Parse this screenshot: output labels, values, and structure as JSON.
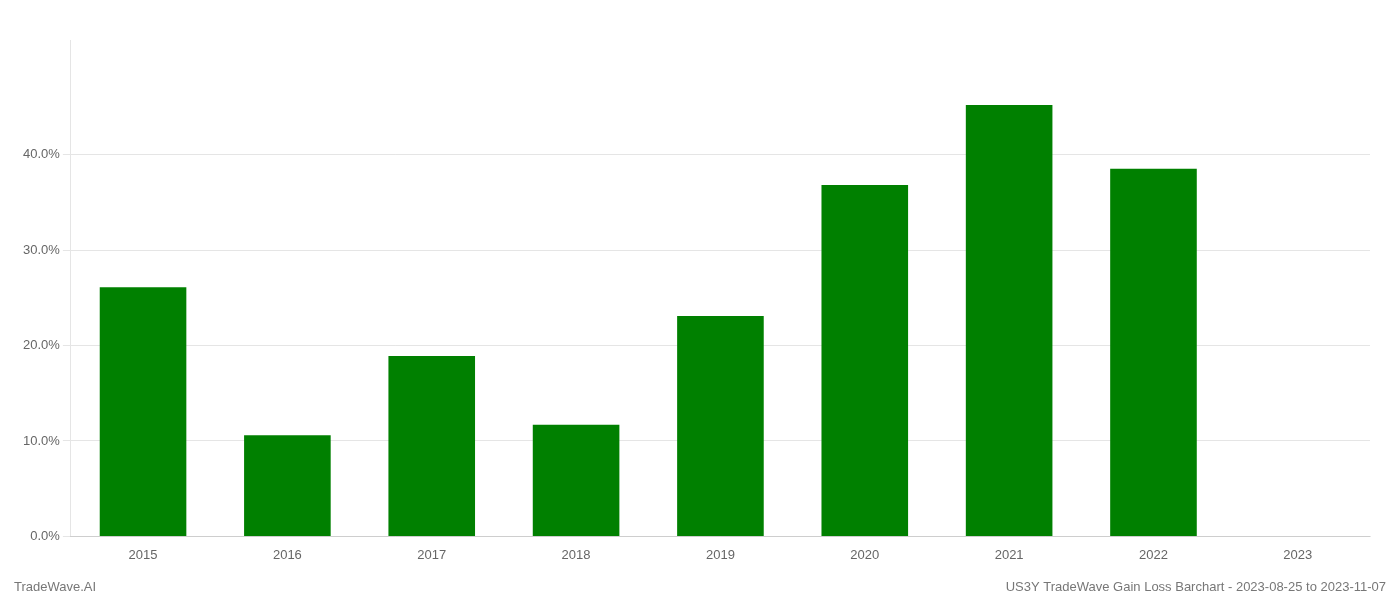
{
  "chart_data": {
    "type": "bar",
    "categories": [
      "2015",
      "2016",
      "2017",
      "2018",
      "2019",
      "2020",
      "2021",
      "2022",
      "2023"
    ],
    "values": [
      0.261,
      0.106,
      0.189,
      0.117,
      0.231,
      0.368,
      0.452,
      0.385,
      null
    ],
    "color": "#008000",
    "ylim": [
      0,
      0.52
    ],
    "yticks": [
      {
        "value": 0.0,
        "label": "0.0%"
      },
      {
        "value": 0.1,
        "label": "10.0%"
      },
      {
        "value": 0.2,
        "label": "20.0%"
      },
      {
        "value": 0.3,
        "label": "30.0%"
      },
      {
        "value": 0.4,
        "label": "40.0%"
      }
    ],
    "grid": true,
    "annotations": [
      "TradeWave.AI",
      "US3Y TradeWave Gain Loss Barchart - 2023-08-25 to 2023-11-07"
    ]
  }
}
